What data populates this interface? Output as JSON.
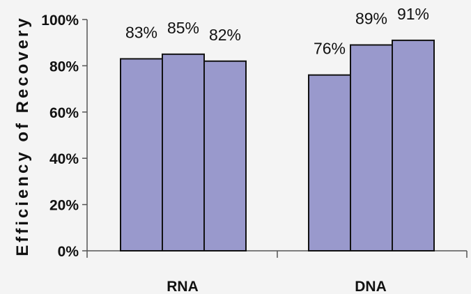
{
  "chart_data": {
    "type": "bar",
    "title": "",
    "xlabel": "",
    "ylabel": "Efficiency of Recovery",
    "ylim": [
      0,
      100
    ],
    "yticks": [
      "0%",
      "20%",
      "40%",
      "60%",
      "80%",
      "100%"
    ],
    "grid": false,
    "categories": [
      "RNA",
      "DNA"
    ],
    "groups": [
      {
        "category": "RNA",
        "values": [
          83,
          85,
          82
        ],
        "labels": [
          "83%",
          "85%",
          "82%"
        ]
      },
      {
        "category": "DNA",
        "values": [
          76,
          89,
          91
        ],
        "labels": [
          "76%",
          "89%",
          "91%"
        ]
      }
    ],
    "bar_color": "#9999cc"
  }
}
